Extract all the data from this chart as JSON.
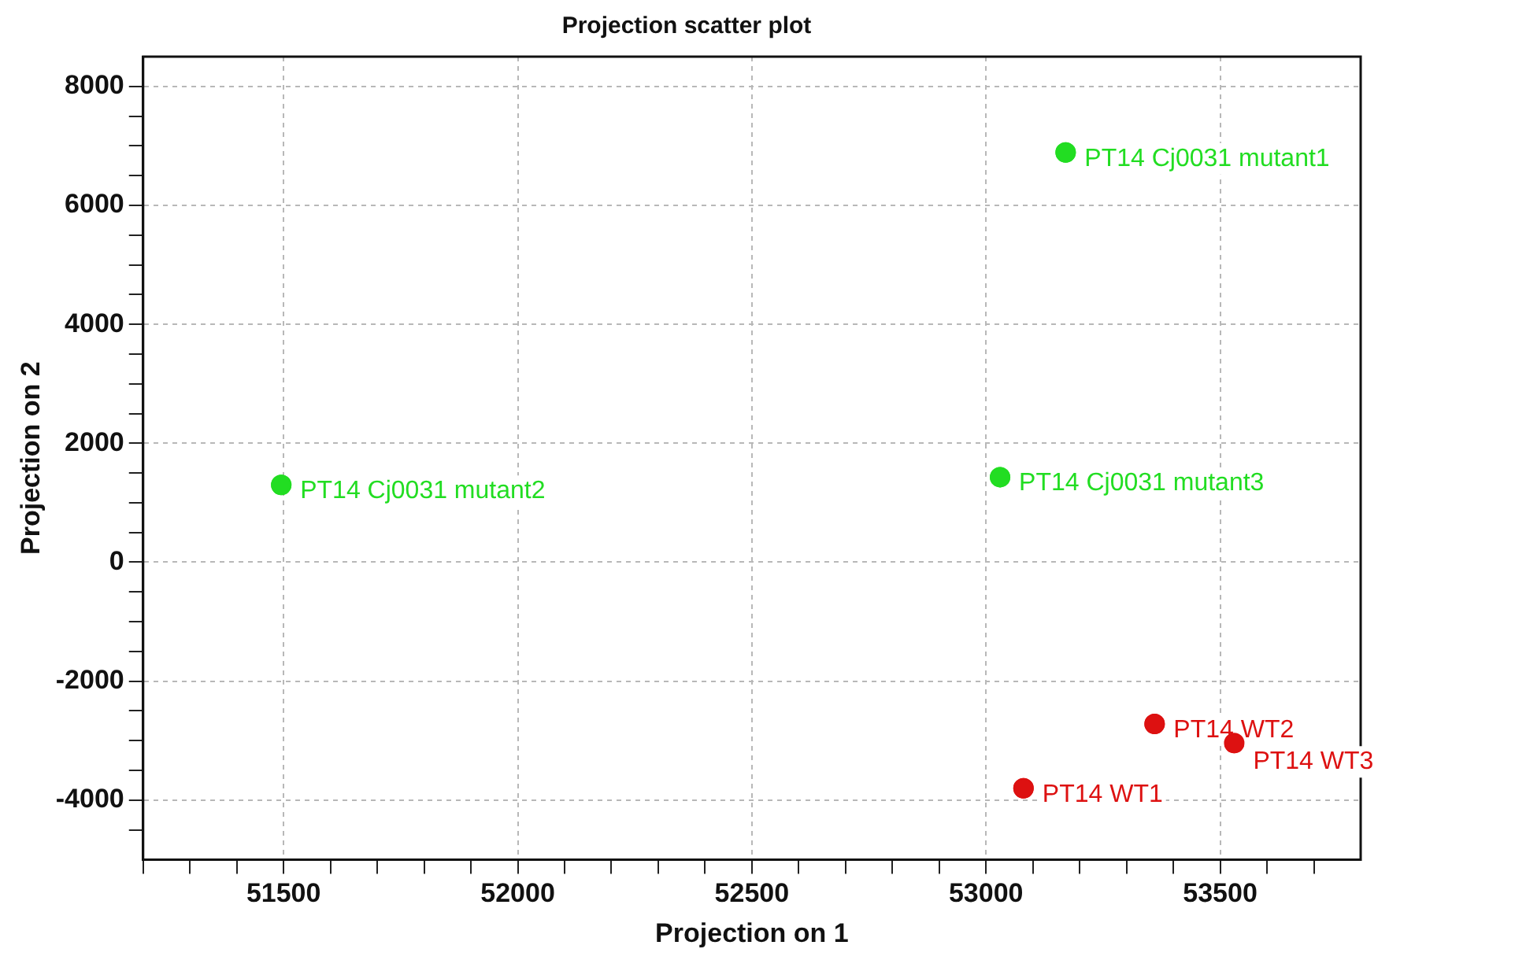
{
  "chart_data": {
    "type": "scatter",
    "title": "Projection scatter plot",
    "xlabel": "Projection on 1",
    "ylabel": "Projection on 2",
    "xlim": [
      51200,
      53800
    ],
    "xticks": [
      {
        "value": 51200,
        "label": null
      },
      {
        "value": 51300,
        "label": null
      },
      {
        "value": 51400,
        "label": null
      },
      51500,
      {
        "value": 51600,
        "label": null
      },
      {
        "value": 51700,
        "label": null
      },
      {
        "value": 51800,
        "label": null
      },
      {
        "value": 51900,
        "label": null
      },
      52000,
      {
        "value": 52100,
        "label": null
      },
      {
        "value": 52200,
        "label": null
      },
      {
        "value": 52300,
        "label": null
      },
      {
        "value": 52400,
        "label": null
      },
      52500,
      {
        "value": 52600,
        "label": null
      },
      {
        "value": 52700,
        "label": null
      },
      {
        "value": 52800,
        "label": null
      },
      {
        "value": 52900,
        "label": null
      },
      53000,
      {
        "value": 53100,
        "label": null
      },
      {
        "value": 53200,
        "label": null
      },
      {
        "value": 53300,
        "label": null
      },
      {
        "value": 53400,
        "label": null
      },
      53500,
      {
        "value": 53600,
        "label": null
      },
      {
        "value": 53700,
        "label": null
      }
    ],
    "ylim": [
      -5000,
      8500
    ],
    "yticks": [
      {
        "value": -4500,
        "label": null
      },
      -4000,
      {
        "value": -3500,
        "label": null
      },
      {
        "value": -3000,
        "label": null
      },
      {
        "value": -2500,
        "label": null
      },
      -2000,
      {
        "value": -1500,
        "label": null
      },
      {
        "value": -1000,
        "label": null
      },
      {
        "value": -500,
        "label": null
      },
      0,
      {
        "value": 500,
        "label": null
      },
      {
        "value": 1000,
        "label": null
      },
      {
        "value": 1500,
        "label": null
      },
      2000,
      {
        "value": 2500,
        "label": null
      },
      {
        "value": 3000,
        "label": null
      },
      {
        "value": 3500,
        "label": null
      },
      4000,
      {
        "value": 4500,
        "label": null
      },
      {
        "value": 5000,
        "label": null
      },
      {
        "value": 5500,
        "label": null
      },
      6000,
      {
        "value": 6500,
        "label": null
      },
      {
        "value": 7000,
        "label": null
      },
      {
        "value": 7500,
        "label": null
      },
      8000
    ],
    "grid": true,
    "marker": "circle",
    "legend": false,
    "series": [
      {
        "name": "PT14 Cj0031 mutant1",
        "color": "#22dd22",
        "x": [
          53170
        ],
        "values": [
          6890
        ]
      },
      {
        "name": "PT14 Cj0031 mutant2",
        "color": "#22dd22",
        "x": [
          51495
        ],
        "values": [
          1300
        ]
      },
      {
        "name": "PT14 Cj0031 mutant3",
        "color": "#22dd22",
        "x": [
          53030
        ],
        "values": [
          1430
        ]
      },
      {
        "name": "PT14 WT1",
        "color": "#dd1111",
        "x": [
          53080
        ],
        "values": [
          -3800
        ]
      },
      {
        "name": "PT14 WT2",
        "color": "#dd1111",
        "x": [
          53360
        ],
        "values": [
          -2720
        ]
      },
      {
        "name": "PT14 WT3",
        "color": "#dd1111",
        "x": [
          53530
        ],
        "values": [
          -3040
        ]
      }
    ]
  }
}
